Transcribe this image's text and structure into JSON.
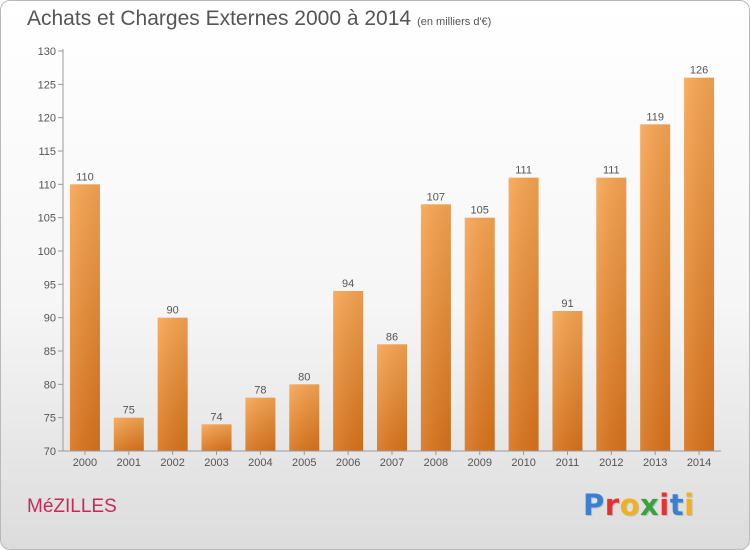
{
  "header": {
    "title": "Achats et Charges Externes 2000 à 2014",
    "subtitle": "(en milliers d'€)"
  },
  "footer": {
    "city": "MéZILLES",
    "brand": "Proxiti"
  },
  "colors": {
    "bar_top": "#f7a552",
    "bar_bottom": "#d8731b",
    "city": "#c8285a"
  },
  "chart_data": {
    "type": "bar",
    "title": "Achats et Charges Externes 2000 à 2014",
    "subtitle": "(en milliers d'€)",
    "categories": [
      "2000",
      "2001",
      "2002",
      "2003",
      "2004",
      "2005",
      "2006",
      "2007",
      "2008",
      "2009",
      "2010",
      "2011",
      "2012",
      "2013",
      "2014"
    ],
    "values": [
      110,
      75,
      90,
      74,
      78,
      80,
      94,
      86,
      107,
      105,
      111,
      91,
      111,
      119,
      126
    ],
    "ylim": [
      70,
      130
    ],
    "yticks": [
      70,
      75,
      80,
      85,
      90,
      95,
      100,
      105,
      110,
      115,
      120,
      125,
      130
    ],
    "xlabel": "",
    "ylabel": "",
    "grid": false,
    "data_labels": true
  }
}
